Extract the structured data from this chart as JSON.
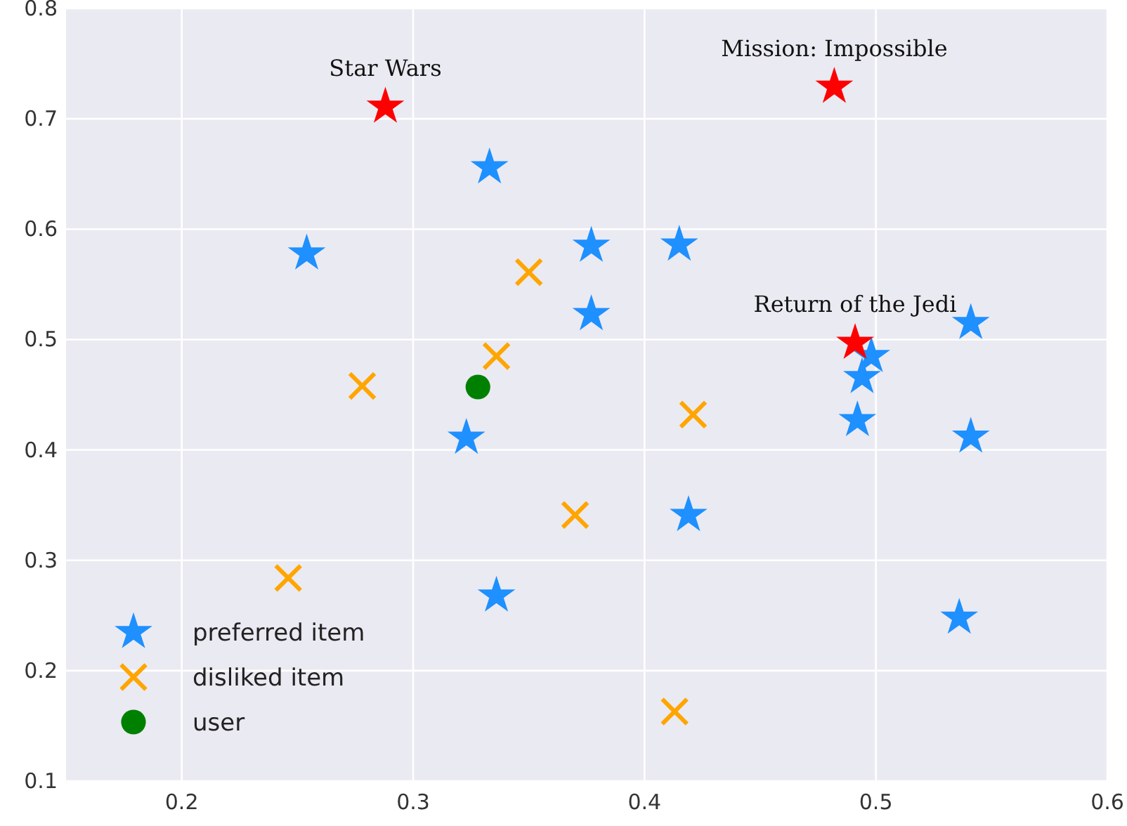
{
  "chart_data": {
    "type": "scatter",
    "xlim": [
      0.15,
      0.6
    ],
    "ylim": [
      0.1,
      0.8
    ],
    "xticks": [
      0.2,
      0.3,
      0.4,
      0.5,
      0.6
    ],
    "yticks": [
      0.1,
      0.2,
      0.3,
      0.4,
      0.5,
      0.6,
      0.7,
      0.8
    ],
    "grid": true,
    "legend": "bottom left",
    "series": [
      {
        "name": "preferred item",
        "color": "#1e90ff",
        "marker": "star",
        "x": [
          0.333,
          0.254,
          0.377,
          0.415,
          0.377,
          0.541,
          0.498,
          0.494,
          0.492,
          0.541,
          0.323,
          0.419,
          0.336,
          0.536
        ],
        "values": [
          0.656,
          0.578,
          0.585,
          0.586,
          0.523,
          0.515,
          0.485,
          0.466,
          0.427,
          0.412,
          0.411,
          0.341,
          0.268,
          0.248
        ]
      },
      {
        "name": "disliked item",
        "color": "#ffa500",
        "marker": "cross",
        "x": [
          0.35,
          0.336,
          0.278,
          0.421,
          0.37,
          0.246,
          0.413
        ],
        "values": [
          0.561,
          0.485,
          0.458,
          0.432,
          0.341,
          0.284,
          0.163
        ]
      },
      {
        "name": "user",
        "color": "#008000",
        "marker": "circle",
        "x": [
          0.328
        ],
        "values": [
          0.457
        ]
      },
      {
        "color": "#ff0000",
        "marker": "star",
        "x": [
          0.288,
          0.482,
          0.491
        ],
        "values": [
          0.711,
          0.729,
          0.497
        ]
      }
    ],
    "annotations": [
      {
        "text": "Star Wars",
        "x": 0.288,
        "y": 0.711
      },
      {
        "text": "Mission: Impossible",
        "x": 0.482,
        "y": 0.729
      },
      {
        "text": "Return of the Jedi",
        "x": 0.491,
        "y": 0.497
      }
    ]
  }
}
